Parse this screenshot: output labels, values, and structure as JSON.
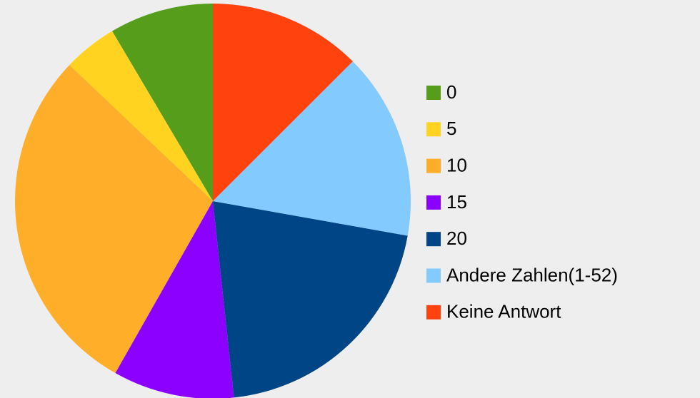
{
  "chart_data": {
    "type": "pie",
    "direction": "counterclockwise",
    "start": "top",
    "categories": [
      "0",
      "5",
      "10",
      "15",
      "20",
      "Andere Zahlen(1-52)",
      "Keine Antwort"
    ],
    "values": [
      8.5,
      4.4,
      28.9,
      9.9,
      20.5,
      15.3,
      12.5
    ],
    "colors": [
      "#579d1c",
      "#ffd320",
      "#ffae2a",
      "#8b00ff",
      "#004586",
      "#83caff",
      "#ff420e"
    ],
    "legend": "right"
  }
}
